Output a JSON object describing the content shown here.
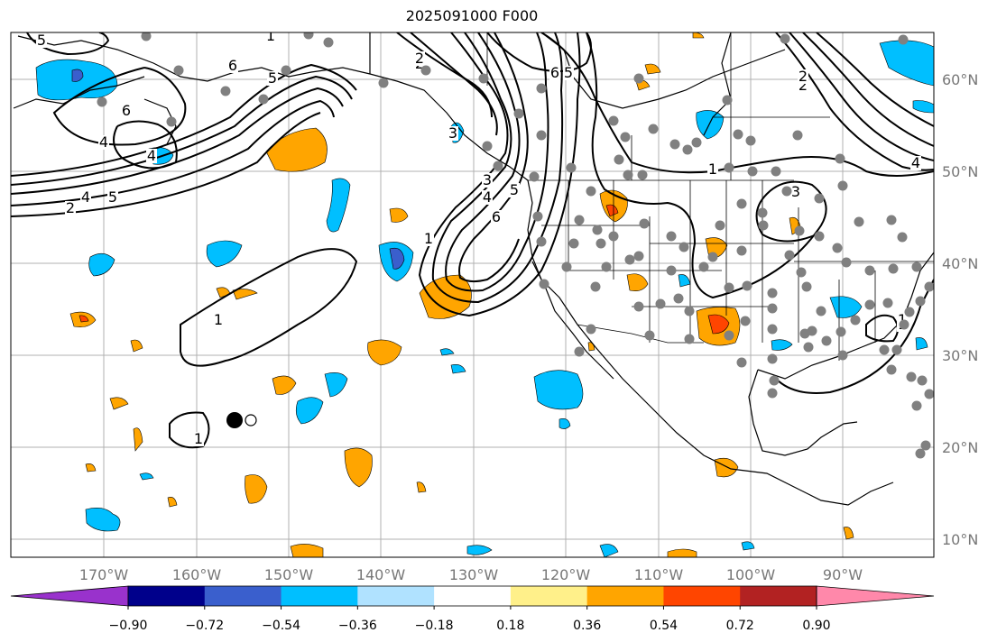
{
  "title": "2025091000 F000",
  "lat_labels": [
    "60°N",
    "50°N",
    "40°N",
    "30°N",
    "20°N",
    "10°N"
  ],
  "lon_labels": [
    "170°W",
    "160°W",
    "150°W",
    "140°W",
    "130°W",
    "120°W",
    "110°W",
    "100°W",
    "90°W"
  ],
  "contour_labels": [
    "5",
    "6",
    "4",
    "6",
    "4",
    "5",
    "4",
    "5",
    "2",
    "1",
    "2",
    "6",
    "5",
    "1",
    "4",
    "5",
    "6",
    "3",
    "1",
    "1",
    "1",
    "3",
    "2",
    "1",
    "3",
    "6",
    "4",
    "2",
    "2",
    "1"
  ],
  "colorbar": {
    "tick_labels": [
      "−0.90",
      "−0.72",
      "−0.54",
      "−0.36",
      "−0.18",
      "0.18",
      "0.36",
      "0.54",
      "0.72",
      "0.90"
    ],
    "colors": [
      "#9932cc",
      "#00008b",
      "#3a5fcd",
      "#00bfff",
      "#b0e2ff",
      "#ffffff",
      "#fff08a",
      "#ffa500",
      "#ff4500",
      "#b22222",
      "#ff88aa"
    ]
  }
}
